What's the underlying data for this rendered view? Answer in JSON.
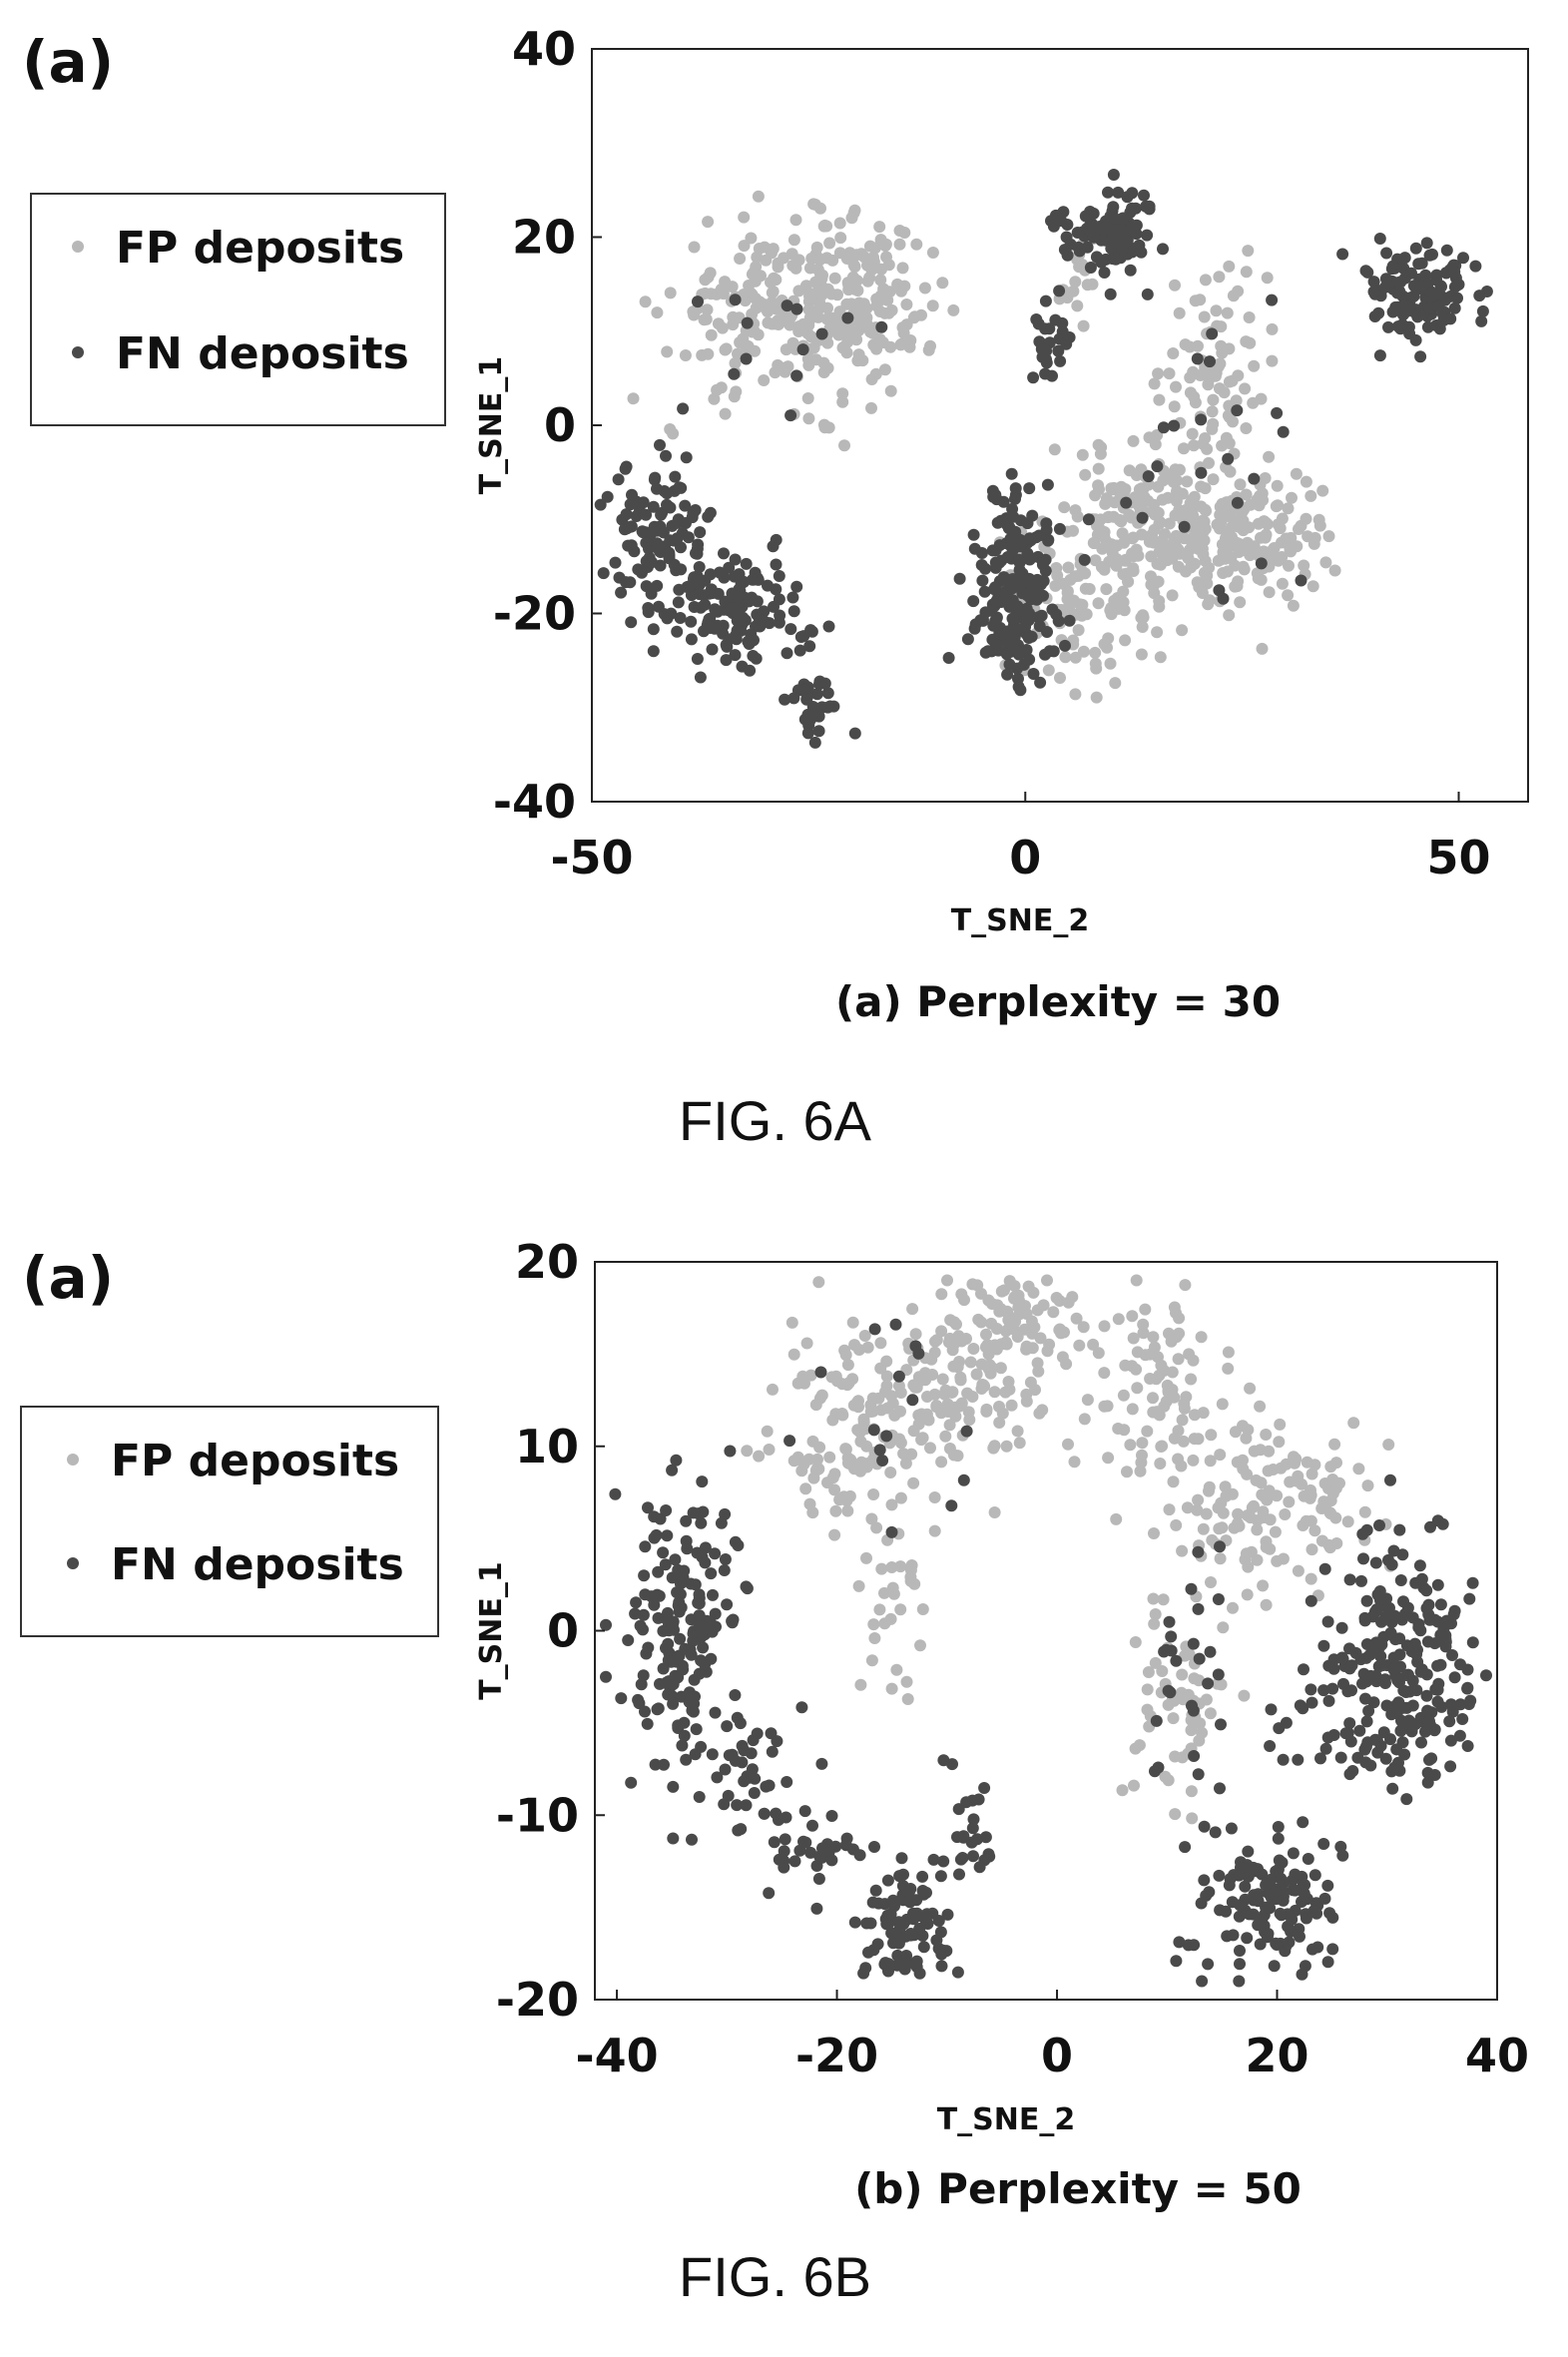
{
  "figures": [
    {
      "panel_tag": "(a)",
      "figure_label": "FIG. 6A",
      "legend": [
        {
          "label": "FP deposits",
          "color": "#b8b8b8"
        },
        {
          "label": "FN deposits",
          "color": "#4a4a4a"
        }
      ]
    },
    {
      "panel_tag": "(a)",
      "figure_label": "FIG. 6B",
      "legend": [
        {
          "label": "FP deposits",
          "color": "#b8b8b8"
        },
        {
          "label": "FN deposits",
          "color": "#4a4a4a"
        }
      ]
    }
  ],
  "chart_data": [
    {
      "type": "scatter",
      "title": "(a) Perplexity = 30",
      "xlabel": "T_SNE_2",
      "ylabel": "T_SNE_1",
      "xlim": [
        -50,
        58
      ],
      "ylim": [
        -40,
        40
      ],
      "xticks": [
        -50,
        0,
        50
      ],
      "yticks": [
        -40,
        -20,
        0,
        20,
        40
      ],
      "grid": false,
      "series": [
        {
          "name": "FP deposits",
          "color": "#b8b8b8",
          "clusters": [
            {
              "cx": -27,
              "cy": 12,
              "sx": 7,
              "sy": 4.5,
              "n": 260
            },
            {
              "cx": -17,
              "cy": 14,
              "sx": 4,
              "sy": 4,
              "n": 80
            },
            {
              "cx": 22,
              "cy": 6,
              "sx": 3,
              "sy": 6,
              "n": 90
            },
            {
              "cx": 15,
              "cy": -10,
              "sx": 6,
              "sy": 4,
              "n": 200
            },
            {
              "cx": 26,
              "cy": -12,
              "sx": 5,
              "sy": 3.5,
              "n": 150
            },
            {
              "cx": 7,
              "cy": -19,
              "sx": 4,
              "sy": 4,
              "n": 100
            },
            {
              "cx": 6,
              "cy": 16,
              "sx": 1.2,
              "sy": 3,
              "n": 20
            }
          ]
        },
        {
          "name": "FN deposits",
          "color": "#4a4a4a",
          "clusters": [
            {
              "cx": -42,
              "cy": -12,
              "sx": 3,
              "sy": 4,
              "n": 110
            },
            {
              "cx": -33,
              "cy": -20,
              "sx": 4,
              "sy": 3,
              "n": 130
            },
            {
              "cx": -24,
              "cy": -30,
              "sx": 1.8,
              "sy": 1.8,
              "n": 30
            },
            {
              "cx": 9,
              "cy": 21,
              "sx": 3,
              "sy": 2.2,
              "n": 100
            },
            {
              "cx": 3,
              "cy": 10,
              "sx": 1.5,
              "sy": 2.5,
              "n": 25
            },
            {
              "cx": 46,
              "cy": 14,
              "sx": 3.5,
              "sy": 2.5,
              "n": 120
            },
            {
              "cx": -1,
              "cy": -20,
              "sx": 2.5,
              "sy": 4,
              "n": 150
            },
            {
              "cx": -1,
              "cy": -11,
              "sx": 2,
              "sy": 2.5,
              "n": 50
            },
            {
              "cx": -30,
              "cy": 8,
              "sx": 8,
              "sy": 4,
              "n": 14
            },
            {
              "cx": 20,
              "cy": -4,
              "sx": 6,
              "sy": 8,
              "n": 25
            }
          ]
        }
      ]
    },
    {
      "type": "scatter",
      "title": "(b) Perplexity = 50",
      "xlabel": "T_SNE_2",
      "ylabel": "T_SNE_1",
      "xlim": [
        -42,
        40
      ],
      "ylim": [
        -20,
        20
      ],
      "xticks": [
        -40,
        -20,
        0,
        20,
        40
      ],
      "yticks": [
        -20,
        -10,
        0,
        10,
        20
      ],
      "grid": false,
      "series": [
        {
          "name": "FP deposits",
          "color": "#b8b8b8",
          "clusters": [
            {
              "cx": -18,
              "cy": 11,
              "sx": 3.5,
              "sy": 2.5,
              "n": 130
            },
            {
              "cx": -9,
              "cy": 14,
              "sx": 4,
              "sy": 2.5,
              "n": 130
            },
            {
              "cx": -3,
              "cy": 17,
              "sx": 2.5,
              "sy": 1.5,
              "n": 60
            },
            {
              "cx": 9,
              "cy": 13,
              "sx": 3,
              "sy": 2.5,
              "n": 90
            },
            {
              "cx": 20,
              "cy": 7,
              "sx": 5,
              "sy": 2.5,
              "n": 140
            },
            {
              "cx": -15,
              "cy": 1,
              "sx": 1.5,
              "sy": 2.5,
              "n": 30
            },
            {
              "cx": 11,
              "cy": -4,
              "sx": 2.2,
              "sy": 3,
              "n": 60
            }
          ]
        },
        {
          "name": "FN deposits",
          "color": "#4a4a4a",
          "clusters": [
            {
              "cx": -34,
              "cy": 0,
              "sx": 2.5,
              "sy": 4,
              "n": 170
            },
            {
              "cx": -28,
              "cy": -8,
              "sx": 2.5,
              "sy": 2,
              "n": 40
            },
            {
              "cx": -22,
              "cy": -12,
              "sx": 2,
              "sy": 1.2,
              "n": 30
            },
            {
              "cx": -14,
              "cy": -16,
              "sx": 2,
              "sy": 1.5,
              "n": 90
            },
            {
              "cx": -8,
              "cy": -11,
              "sx": 1.2,
              "sy": 2,
              "n": 25
            },
            {
              "cx": 19,
              "cy": -15,
              "sx": 3,
              "sy": 2,
              "n": 130
            },
            {
              "cx": 32,
              "cy": -2,
              "sx": 3,
              "sy": 3.5,
              "n": 200
            },
            {
              "cx": 26,
              "cy": -4,
              "sx": 3,
              "sy": 3,
              "n": 50
            },
            {
              "cx": 12,
              "cy": -3,
              "sx": 2.5,
              "sy": 3.5,
              "n": 30
            },
            {
              "cx": -15,
              "cy": 11,
              "sx": 5,
              "sy": 3,
              "n": 16
            }
          ]
        }
      ]
    }
  ]
}
